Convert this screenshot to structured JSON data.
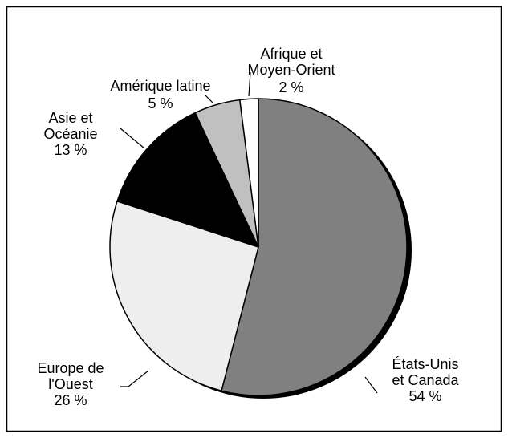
{
  "chart_data": {
    "type": "pie",
    "categories": [
      "États-Unis\net Canada",
      "Europe de\nl'Ouest",
      "Asie et\nOcéanie",
      "Amérique latine",
      "Afrique et\nMoyen-Orient"
    ],
    "values": [
      54,
      26,
      13,
      5,
      2
    ],
    "value_labels": [
      "54 %",
      "26 %",
      "13 %",
      "5 %",
      "2 %"
    ],
    "colors": [
      "#808080",
      "#eeeeee",
      "#000000",
      "#c0c0c0",
      "#ffffff"
    ]
  }
}
